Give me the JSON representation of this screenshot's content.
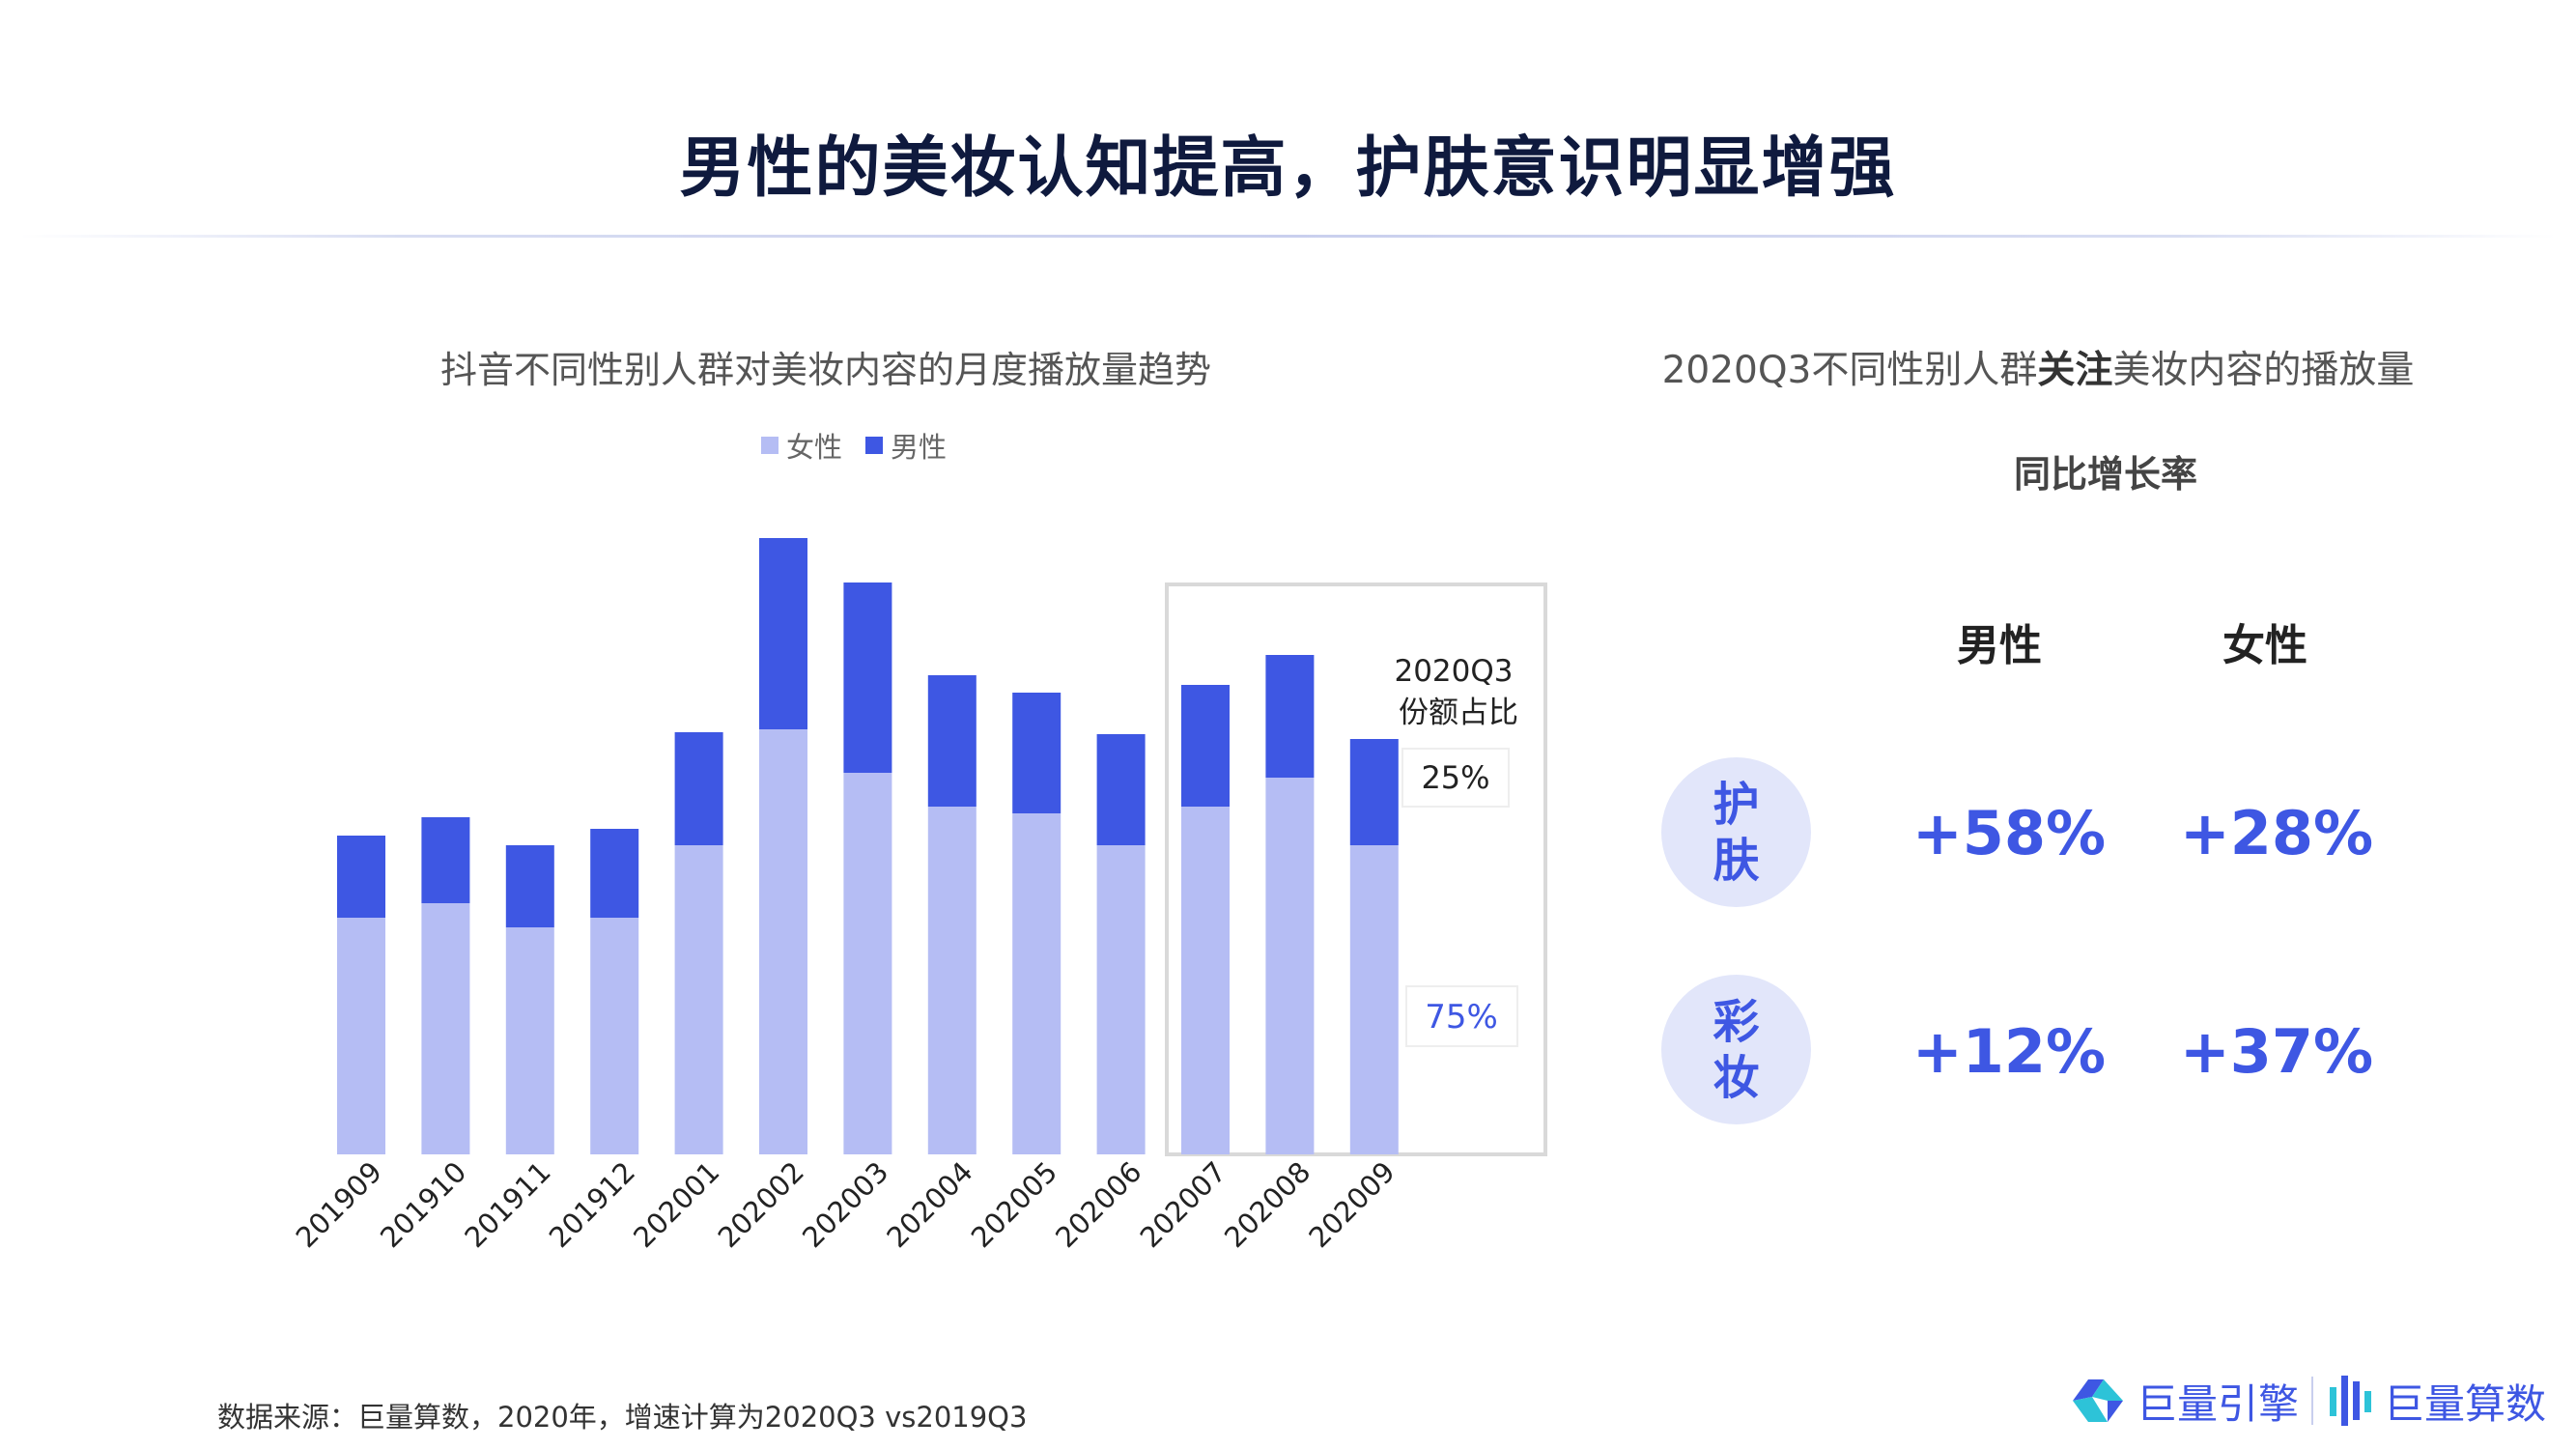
{
  "title": "男性的美妆认知提高，护肤意识明显增强",
  "chart_data": {
    "type": "bar",
    "stacked": true,
    "title": "抖音不同性别人群对美妆内容的月度播放量趋势",
    "categories": [
      "201909",
      "201910",
      "201911",
      "201912",
      "202001",
      "202002",
      "202003",
      "202004",
      "202005",
      "202006",
      "202007",
      "202008",
      "202009"
    ],
    "series": [
      {
        "name": "女性",
        "color": "#b5bdf4",
        "values": [
          24.5,
          26.0,
          23.5,
          24.5,
          32.0,
          44.0,
          39.5,
          36.0,
          35.3,
          32.0,
          36.0,
          39.0,
          32.0
        ]
      },
      {
        "name": "男性",
        "color": "#3e57e3",
        "values": [
          8.5,
          8.9,
          8.5,
          9.2,
          11.7,
          19.8,
          19.7,
          13.6,
          12.5,
          11.5,
          12.6,
          12.7,
          11.0
        ]
      }
    ],
    "legend": "top",
    "ylim": [
      0,
      65
    ],
    "grid": false,
    "highlight": {
      "label_line1": "2020Q3",
      "label_line2": "份额占比",
      "male_share": "25%",
      "female_share": "75%"
    }
  },
  "right_panel": {
    "title_prefix": "2020Q3不同性别人群",
    "title_bold": "关注",
    "title_suffix": "美妆内容的播放量",
    "subtitle": "同比增长率",
    "col_male": "男性",
    "col_female": "女性",
    "rows": [
      {
        "cat_line1": "护",
        "cat_line2": "肤",
        "male": "+58%",
        "female": "+28%"
      },
      {
        "cat_line1": "彩",
        "cat_line2": "妆",
        "male": "+12%",
        "female": "+37%"
      }
    ]
  },
  "footer": "数据来源：巨量算数，2020年，增速计算为2020Q3 vs2019Q3",
  "logos": {
    "engine": "巨量引擎",
    "suanshu": "巨量算数"
  },
  "colors": {
    "accent": "#3e57e3",
    "light": "#b5bdf4",
    "circle_bg": "#e2e6fa",
    "title": "#0f1a3e"
  }
}
